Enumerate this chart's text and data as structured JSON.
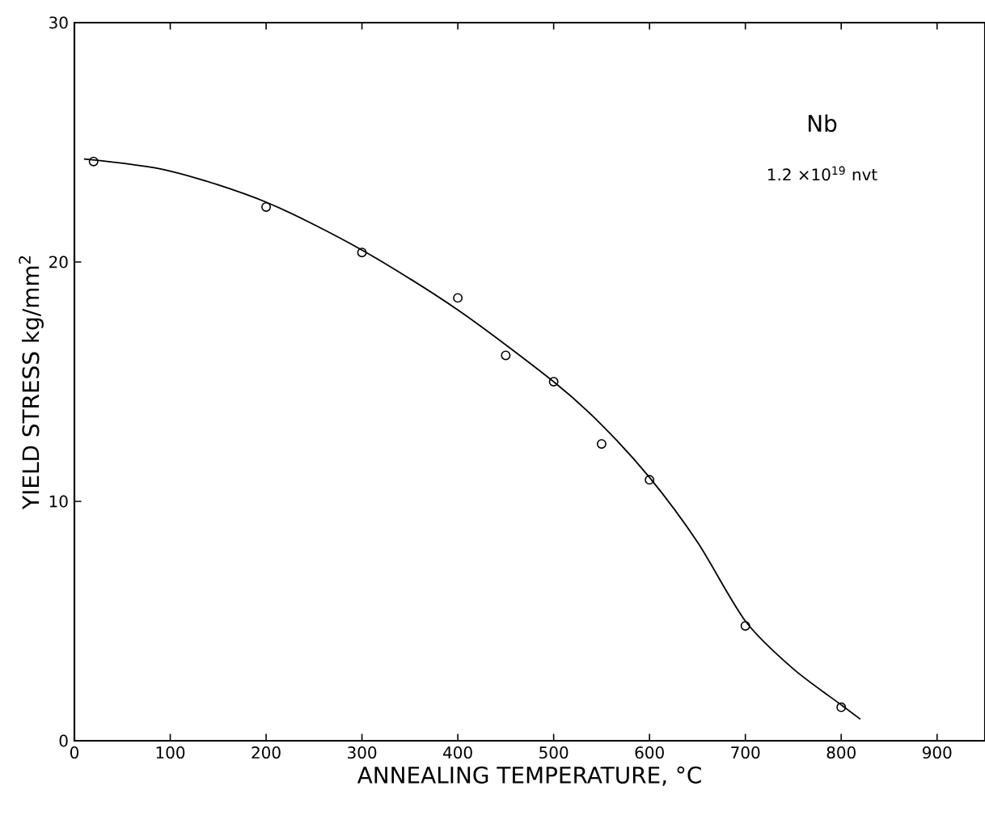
{
  "chart_data": {
    "type": "scatter",
    "xlabel": "ANNEALING TEMPERATURE, °C",
    "ylabel": "YIELD STRESS    kg/mm$^{2}$",
    "annotations": [
      "Nb",
      "1.2 ×10$^{19}$ nvt"
    ],
    "x": [
      20,
      200,
      300,
      400,
      450,
      500,
      550,
      600,
      700,
      800
    ],
    "marker": "circle",
    "series": [
      {
        "color": "#000000",
        "values": [
          24.2,
          22.3,
          20.4,
          18.5,
          16.1,
          15.0,
          12.4,
          10.9,
          4.8,
          1.4
        ]
      },
      {
        "type": "line",
        "color": "#000000",
        "marker": "none",
        "x": [
          10,
          100,
          200,
          300,
          400,
          500,
          550,
          600,
          650,
          700,
          750,
          800,
          820
        ],
        "values": [
          24.3,
          23.8,
          22.5,
          20.5,
          18.0,
          15.0,
          13.2,
          11.0,
          8.3,
          5.0,
          3.0,
          1.5,
          0.9
        ]
      }
    ],
    "xlim": [
      0,
      950
    ],
    "ylim": [
      0,
      30
    ],
    "xticks": [
      0,
      100,
      200,
      300,
      400,
      500,
      600,
      700,
      800,
      900
    ],
    "yticks": [
      0,
      10,
      20,
      30
    ],
    "grid": false
  }
}
